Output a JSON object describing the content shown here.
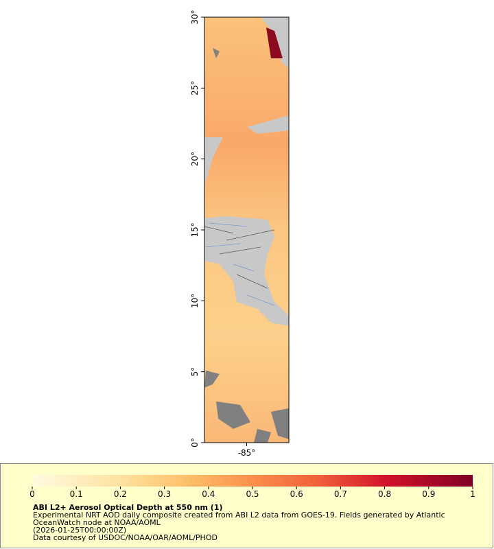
{
  "map": {
    "xlim": [
      -88,
      -82
    ],
    "ylim": [
      0,
      30
    ],
    "xticks": [
      {
        "value": -85,
        "label": "-85°"
      }
    ],
    "yticks": [
      {
        "value": 0,
        "label": "0°"
      },
      {
        "value": 5,
        "label": "5°"
      },
      {
        "value": 10,
        "label": "10°"
      },
      {
        "value": 15,
        "label": "15°"
      },
      {
        "value": 20,
        "label": "20°"
      },
      {
        "value": 25,
        "label": "25°"
      },
      {
        "value": 30,
        "label": "30°"
      }
    ]
  },
  "colorbar": {
    "lim": [
      0,
      1
    ],
    "ticks": [
      0,
      0.1,
      0.2,
      0.3,
      0.4,
      0.5,
      0.6,
      0.7,
      0.8,
      0.9,
      1
    ]
  },
  "legend": {
    "title": "ABI L2+ Aerosol Optical Depth at 550 nm (1)",
    "lines": [
      "Experimental NRT AOD daily composite created from ABI L2 data from GOES-19. Fields generated by Atlantic",
      "OceanWatch node at NOAA/AOML",
      "(2026-01-25T00:00:00Z)",
      "Data courtesy of USDOC/NOAA/OAR/AOML/PHOD"
    ]
  }
}
